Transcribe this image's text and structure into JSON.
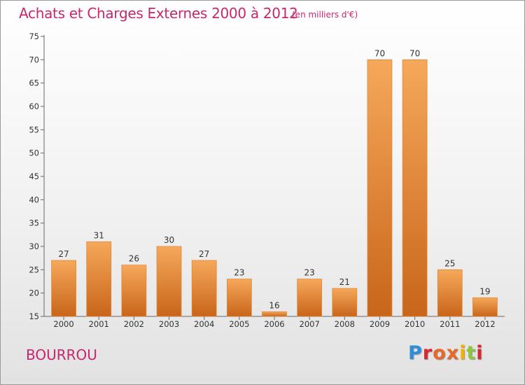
{
  "header": {
    "title": "Achats et Charges Externes 2000 à 2012",
    "unit": "(en milliers d'€)"
  },
  "footer": {
    "commune": "BOURROU",
    "brand": "Proxiti"
  },
  "colors": {
    "title": "#c8266e",
    "bar_light": "#f6a85a",
    "bar_dark": "#c8651a",
    "brand_letters": [
      "#2f8fd6",
      "#e8682a",
      "#d9262e",
      "#8cc63f",
      "#f4b000"
    ]
  },
  "chart_data": {
    "type": "bar",
    "title": "Achats et Charges Externes 2000 à 2012",
    "categories": [
      "2000",
      "2001",
      "2002",
      "2003",
      "2004",
      "2005",
      "2006",
      "2007",
      "2008",
      "2009",
      "2010",
      "2011",
      "2012"
    ],
    "values": [
      27,
      31,
      26,
      30,
      27,
      23,
      16,
      23,
      21,
      70,
      70,
      25,
      19
    ],
    "ylim": [
      15,
      75
    ],
    "yticks": [
      15,
      20,
      25,
      30,
      35,
      40,
      45,
      50,
      55,
      60,
      65,
      70,
      75
    ],
    "grid": false,
    "legend": "none"
  }
}
